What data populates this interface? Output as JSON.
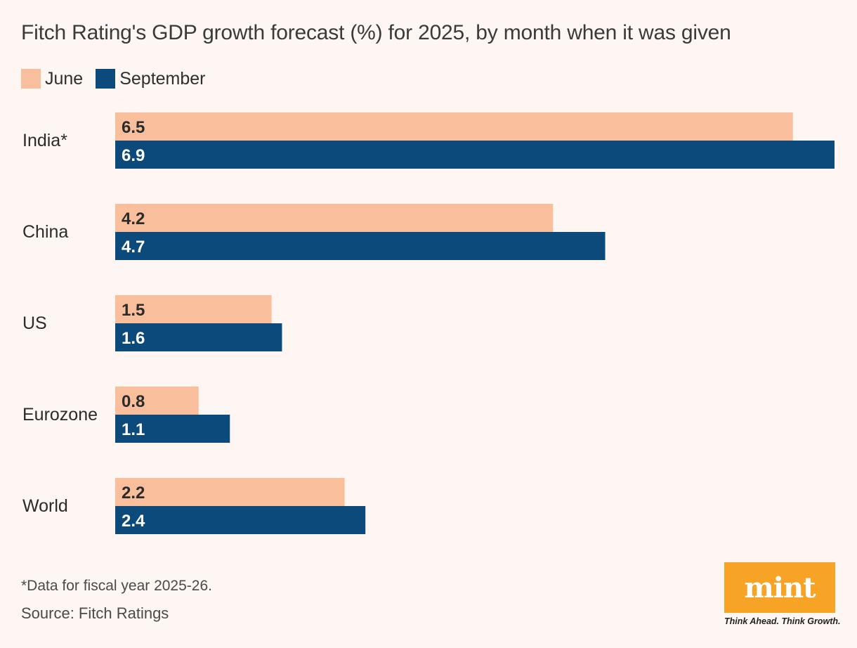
{
  "title": "Fitch Rating's GDP growth forecast (%) for 2025, by month when it was given",
  "legend": [
    {
      "label": "June",
      "color": "#f9bf9d"
    },
    {
      "label": "September",
      "color": "#0b4a7a"
    }
  ],
  "chart_data": {
    "type": "bar",
    "orientation": "horizontal",
    "title": "Fitch Rating's GDP growth forecast (%) for 2025, by month when it was given",
    "categories": [
      "India*",
      "China",
      "US",
      "Eurozone",
      "World"
    ],
    "series": [
      {
        "name": "June",
        "values": [
          6.5,
          4.2,
          1.5,
          0.8,
          2.2
        ],
        "color": "#f9bf9d"
      },
      {
        "name": "September",
        "values": [
          6.9,
          4.7,
          1.6,
          1.1,
          2.4
        ],
        "color": "#0b4a7a"
      }
    ],
    "xlim": [
      0,
      6.9
    ],
    "grid": false,
    "data_labels": true,
    "legend_position": "top-left"
  },
  "footnote": "*Data for fiscal year 2025-26.",
  "source": "Source: Fitch Ratings",
  "logo": {
    "text": "mint",
    "tagline": "Think Ahead. Think Growth.",
    "color": "#f7a325"
  }
}
